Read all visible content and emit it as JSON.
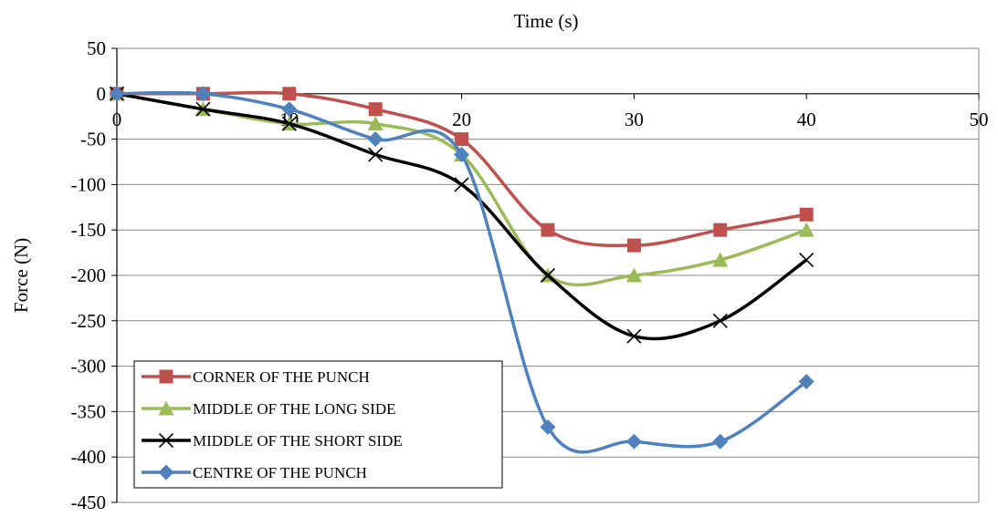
{
  "chart_data": {
    "type": "line",
    "xlabel": "Time (s)",
    "ylabel": "Force (N)",
    "xlim": [
      0,
      50
    ],
    "ylim": [
      -450,
      50
    ],
    "x_ticks": [
      0,
      10,
      20,
      30,
      40,
      50
    ],
    "y_ticks": [
      50,
      0,
      -50,
      -100,
      -150,
      -200,
      -250,
      -300,
      -350,
      -400,
      -450
    ],
    "grid": "horizontal",
    "legend_position": "bottom-left",
    "series": [
      {
        "name": "CORNER OF THE PUNCH",
        "color": "#C0504D",
        "marker": "square",
        "x": [
          0,
          5,
          10,
          15,
          20,
          25,
          30,
          35,
          40
        ],
        "y": [
          0,
          0,
          0,
          -17,
          -50,
          -150,
          -167,
          -150,
          -133
        ]
      },
      {
        "name": "MIDDLE OF THE LONG SIDE",
        "color": "#9BBB59",
        "marker": "triangle",
        "x": [
          0,
          5,
          10,
          15,
          20,
          25,
          30,
          35,
          40
        ],
        "y": [
          0,
          -17,
          -33,
          -33,
          -67,
          -200,
          -200,
          -183,
          -150
        ]
      },
      {
        "name": "MIDDLE OF THE SHORT SIDE",
        "color": "#000000",
        "marker": "x",
        "x": [
          0,
          5,
          10,
          15,
          20,
          25,
          30,
          35,
          40
        ],
        "y": [
          0,
          -17,
          -33,
          -67,
          -100,
          -200,
          -267,
          -250,
          -183
        ]
      },
      {
        "name": "CENTRE OF THE PUNCH",
        "color": "#4F81BD",
        "marker": "diamond",
        "x": [
          0,
          5,
          10,
          15,
          20,
          25,
          30,
          35,
          40
        ],
        "y": [
          0,
          0,
          -17,
          -50,
          -67,
          -367,
          -383,
          -383,
          -317
        ]
      }
    ]
  }
}
